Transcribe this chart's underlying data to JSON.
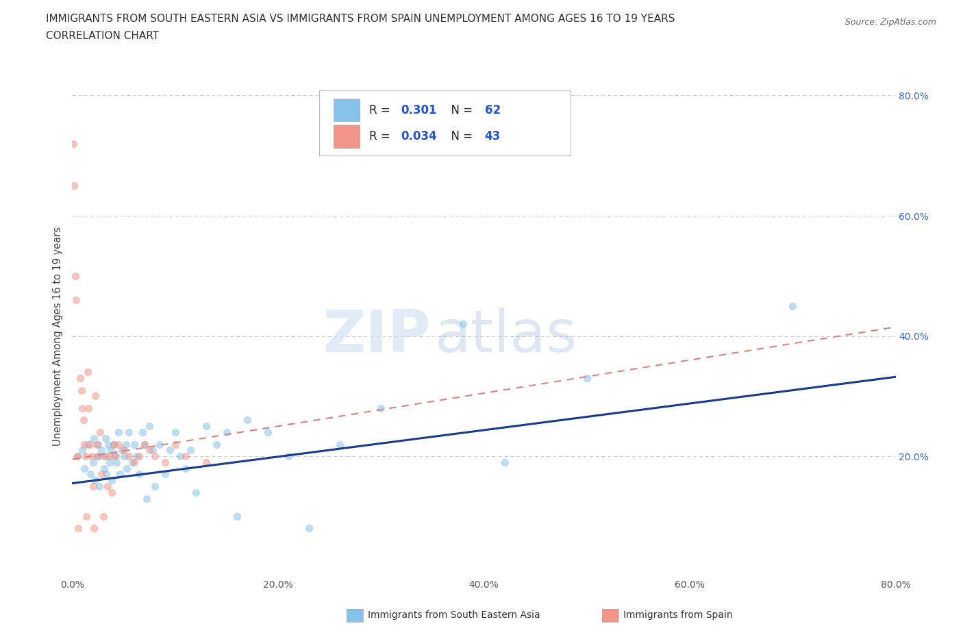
{
  "title_line1": "IMMIGRANTS FROM SOUTH EASTERN ASIA VS IMMIGRANTS FROM SPAIN UNEMPLOYMENT AMONG AGES 16 TO 19 YEARS",
  "title_line2": "CORRELATION CHART",
  "source_text": "Source: ZipAtlas.com",
  "ylabel": "Unemployment Among Ages 16 to 19 years",
  "xlim": [
    0.0,
    0.8
  ],
  "ylim": [
    0.0,
    0.8
  ],
  "xticks": [
    0.0,
    0.2,
    0.4,
    0.6,
    0.8
  ],
  "yticks": [
    0.2,
    0.4,
    0.6,
    0.8
  ],
  "xticklabels": [
    "0.0%",
    "20.0%",
    "40.0%",
    "60.0%",
    "80.0%"
  ],
  "right_yticklabels": [
    "20.0%",
    "40.0%",
    "60.0%",
    "80.0%"
  ],
  "right_yticks": [
    0.2,
    0.4,
    0.6,
    0.8
  ],
  "color_asia": "#85C1E9",
  "color_spain": "#F1948A",
  "color_line_asia": "#1A3A8A",
  "color_line_spain": "#E8808080",
  "grid_color": "#CCCCCC",
  "background_color": "#FFFFFF",
  "scatter_alpha": 0.55,
  "scatter_size": 55,
  "asia_x": [
    0.005,
    0.01,
    0.012,
    0.015,
    0.018,
    0.02,
    0.021,
    0.022,
    0.024,
    0.025,
    0.026,
    0.028,
    0.03,
    0.031,
    0.032,
    0.033,
    0.035,
    0.036,
    0.037,
    0.038,
    0.04,
    0.041,
    0.043,
    0.045,
    0.046,
    0.048,
    0.05,
    0.052,
    0.053,
    0.055,
    0.058,
    0.06,
    0.062,
    0.065,
    0.068,
    0.07,
    0.072,
    0.075,
    0.078,
    0.08,
    0.085,
    0.09,
    0.095,
    0.1,
    0.105,
    0.11,
    0.115,
    0.12,
    0.13,
    0.14,
    0.15,
    0.16,
    0.17,
    0.19,
    0.21,
    0.23,
    0.26,
    0.3,
    0.38,
    0.42,
    0.5,
    0.7
  ],
  "asia_y": [
    0.2,
    0.21,
    0.18,
    0.22,
    0.17,
    0.19,
    0.23,
    0.16,
    0.2,
    0.22,
    0.15,
    0.21,
    0.2,
    0.18,
    0.23,
    0.17,
    0.22,
    0.19,
    0.21,
    0.16,
    0.22,
    0.2,
    0.19,
    0.24,
    0.17,
    0.21,
    0.2,
    0.22,
    0.18,
    0.24,
    0.19,
    0.22,
    0.2,
    0.17,
    0.24,
    0.22,
    0.13,
    0.25,
    0.21,
    0.15,
    0.22,
    0.17,
    0.21,
    0.24,
    0.2,
    0.18,
    0.21,
    0.14,
    0.25,
    0.22,
    0.24,
    0.1,
    0.26,
    0.24,
    0.2,
    0.08,
    0.22,
    0.28,
    0.42,
    0.19,
    0.33,
    0.45
  ],
  "spain_x": [
    0.001,
    0.002,
    0.003,
    0.004,
    0.005,
    0.006,
    0.008,
    0.009,
    0.01,
    0.011,
    0.012,
    0.013,
    0.014,
    0.015,
    0.016,
    0.018,
    0.019,
    0.02,
    0.021,
    0.022,
    0.024,
    0.025,
    0.027,
    0.028,
    0.03,
    0.032,
    0.034,
    0.036,
    0.038,
    0.04,
    0.042,
    0.045,
    0.05,
    0.055,
    0.06,
    0.065,
    0.07,
    0.075,
    0.08,
    0.09,
    0.1,
    0.11,
    0.13
  ],
  "spain_y": [
    0.72,
    0.65,
    0.5,
    0.46,
    0.2,
    0.08,
    0.33,
    0.31,
    0.28,
    0.26,
    0.22,
    0.2,
    0.1,
    0.34,
    0.28,
    0.22,
    0.2,
    0.15,
    0.08,
    0.3,
    0.22,
    0.2,
    0.24,
    0.17,
    0.1,
    0.2,
    0.15,
    0.2,
    0.14,
    0.22,
    0.2,
    0.22,
    0.21,
    0.2,
    0.19,
    0.2,
    0.22,
    0.21,
    0.2,
    0.19,
    0.22,
    0.2,
    0.19
  ],
  "asia_line_x0": 0.0,
  "asia_line_x1": 0.8,
  "asia_line_y0": 0.155,
  "asia_line_y1": 0.332,
  "spain_line_x0": 0.0,
  "spain_line_x1": 0.8,
  "spain_line_y0": 0.195,
  "spain_line_y1": 0.415
}
